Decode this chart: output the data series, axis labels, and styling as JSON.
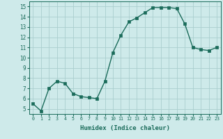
{
  "x": [
    0,
    1,
    2,
    3,
    4,
    5,
    6,
    7,
    8,
    9,
    10,
    11,
    12,
    13,
    14,
    15,
    16,
    17,
    18,
    19,
    20,
    21,
    22,
    23
  ],
  "y": [
    5.5,
    4.8,
    7.0,
    7.7,
    7.5,
    6.5,
    6.2,
    6.1,
    6.0,
    7.7,
    10.5,
    12.2,
    13.5,
    13.9,
    14.4,
    14.9,
    14.9,
    14.9,
    14.8,
    13.3,
    11.0,
    10.8,
    10.7,
    11.0
  ],
  "line_color": "#1a6b5a",
  "marker": "s",
  "marker_size": 2.2,
  "background_color": "#ceeaea",
  "grid_color": "#aacece",
  "xlabel": "Humidex (Indice chaleur)",
  "ylim": [
    4.5,
    15.5
  ],
  "xlim": [
    -0.5,
    23.5
  ],
  "yticks": [
    5,
    6,
    7,
    8,
    9,
    10,
    11,
    12,
    13,
    14,
    15
  ],
  "xticks": [
    0,
    1,
    2,
    3,
    4,
    5,
    6,
    7,
    8,
    9,
    10,
    11,
    12,
    13,
    14,
    15,
    16,
    17,
    18,
    19,
    20,
    21,
    22,
    23
  ],
  "tick_color": "#1a6b5a",
  "label_color": "#1a6b5a",
  "axis_color": "#1a6b5a",
  "xlabel_fontsize": 6.5,
  "xtick_fontsize": 4.8,
  "ytick_fontsize": 5.5,
  "linewidth": 1.0
}
